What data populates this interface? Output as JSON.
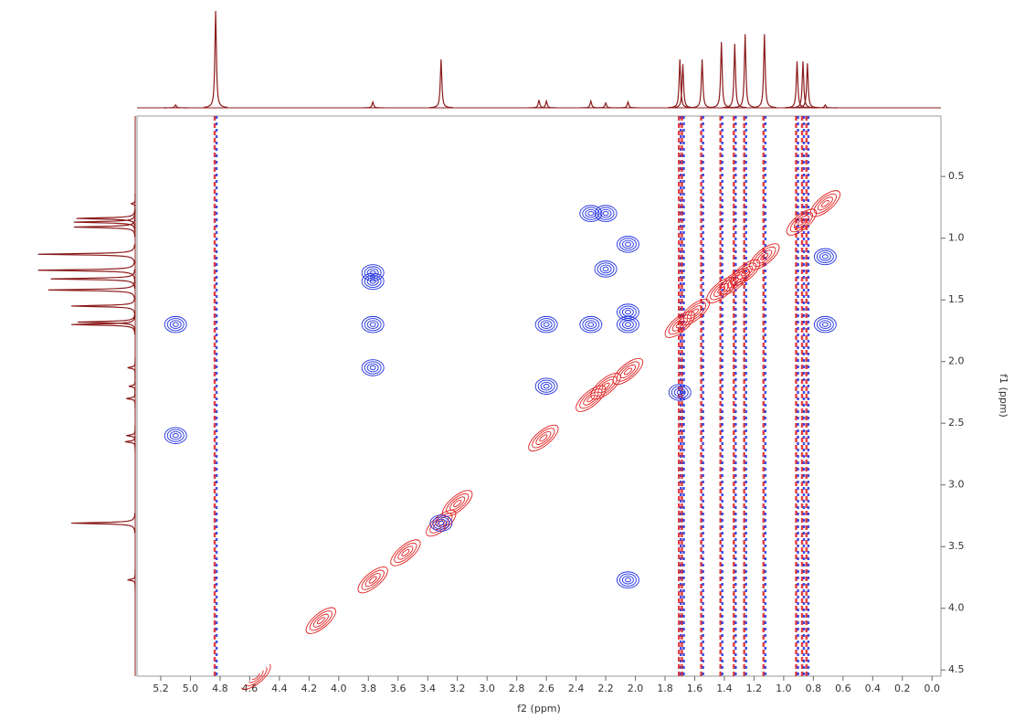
{
  "chart_data": {
    "type": "nmr2d",
    "xlabel": "f2 (ppm)",
    "ylabel": "f1 (ppm)",
    "xlim": [
      5.36,
      -0.06
    ],
    "ylim": [
      0.01,
      4.55
    ],
    "xticks": [
      5.2,
      {
        "value": 5.0,
        "label": "5.0"
      },
      4.8,
      4.6,
      4.4,
      4.2,
      {
        "value": 4.0,
        "label": "4.0"
      },
      3.8,
      3.6,
      3.4,
      3.2,
      {
        "value": 3.0,
        "label": "3.0"
      },
      2.8,
      2.6,
      2.4,
      2.2,
      {
        "value": 2.0,
        "label": "2.0"
      },
      1.8,
      1.6,
      1.4,
      1.2,
      {
        "value": 1.0,
        "label": "1.0"
      },
      0.8,
      0.6,
      0.4,
      0.2,
      {
        "value": 0.0,
        "label": "0.0"
      }
    ],
    "yticks": [
      0.5,
      {
        "value": 1.0,
        "label": "1.0"
      },
      1.5,
      {
        "value": 2.0,
        "label": "2.0"
      },
      2.5,
      {
        "value": 3.0,
        "label": "3.0"
      },
      3.5,
      {
        "value": 4.0,
        "label": "4.0"
      },
      4.5
    ],
    "spectrum_color": "#8b1a1a",
    "peaks": {
      "ppm": [
        5.1,
        4.83,
        3.77,
        3.31,
        2.65,
        2.6,
        2.3,
        2.2,
        2.05,
        1.7,
        1.68,
        1.55,
        1.42,
        1.33,
        1.26,
        1.13,
        0.91,
        0.87,
        0.84,
        0.72
      ],
      "height": [
        3,
        100,
        6,
        50,
        8,
        7,
        7,
        5,
        6,
        50,
        45,
        50,
        68,
        66,
        76,
        76,
        48,
        48,
        46,
        3
      ]
    },
    "t1_noise": {
      "x": [
        4.83,
        1.7,
        1.68,
        1.55,
        1.42,
        1.33,
        1.26,
        1.13,
        0.91,
        0.87,
        0.84
      ],
      "colors": [
        "#e02020",
        "#2030e0"
      ]
    },
    "contours": [
      {
        "color": "#e02020",
        "x": [
          4.56,
          4.12,
          3.77,
          3.31,
          2.62,
          2.3,
          2.2,
          2.05,
          1.7,
          1.6,
          1.42,
          1.33,
          1.26,
          1.13,
          0.88,
          0.72,
          3.55,
          3.2
        ],
        "y": [
          4.55,
          4.1,
          3.77,
          3.31,
          2.62,
          2.3,
          2.2,
          2.08,
          1.7,
          1.6,
          1.42,
          1.35,
          1.28,
          1.15,
          0.87,
          0.72,
          3.55,
          3.15
        ]
      },
      {
        "color": "#2030e0",
        "x": [
          3.77,
          3.77,
          3.77,
          3.77,
          5.1,
          5.1,
          2.05,
          2.05,
          2.05,
          2.05,
          2.6,
          2.6,
          2.3,
          2.2,
          2.2,
          2.3,
          1.7,
          0.72,
          0.72,
          3.31
        ],
        "y": [
          1.28,
          1.35,
          1.7,
          2.05,
          1.7,
          2.6,
          3.77,
          1.05,
          1.6,
          1.7,
          2.2,
          1.7,
          1.7,
          0.8,
          1.25,
          0.8,
          2.25,
          1.15,
          1.7,
          3.31
        ]
      }
    ]
  }
}
